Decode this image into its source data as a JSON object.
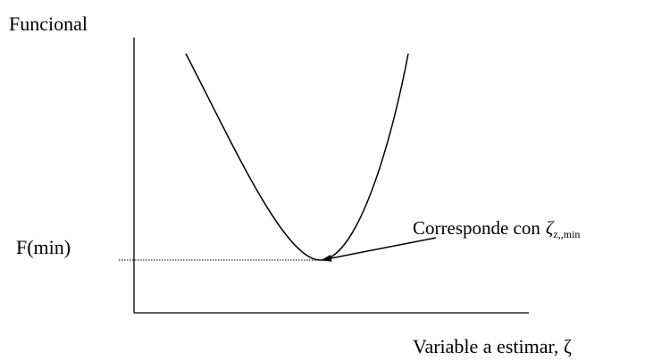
{
  "labels": {
    "y_axis": "Funcional",
    "minimum": "F(min)",
    "annotation": {
      "text": "Corresponde con",
      "symbol": "ζ",
      "subscript": "z,,min"
    },
    "x_axis": "Variable a estimar, ζ"
  }
}
